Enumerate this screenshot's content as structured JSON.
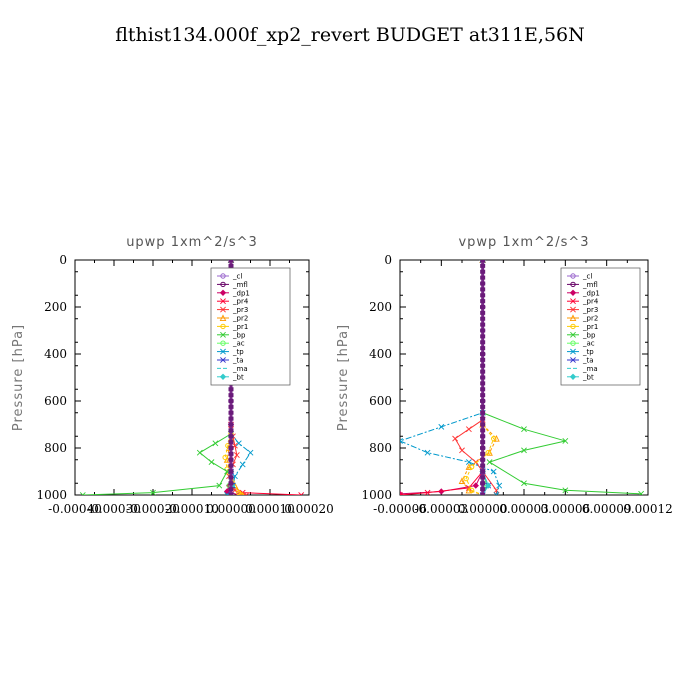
{
  "title": "flthist134.000f_xp2_revert  BUDGET at311E,56N",
  "chart_data": [
    {
      "type": "line",
      "title": "upwp   1xm^2/s^3",
      "ylabel": "Pressure [hPa]",
      "xlim": [
        -0.0004,
        0.0002
      ],
      "ylim": [
        1000,
        0
      ],
      "xticks": [
        "-0.00040",
        "-0.00030",
        "-0.00020",
        "-0.00010",
        "0.00000",
        "0.00010",
        "0.00020"
      ],
      "yticks": [
        "0",
        "200",
        "400",
        "600",
        "800",
        "1000"
      ],
      "legend_position": "top-right",
      "series": [
        {
          "name": "_cl",
          "color": "#9966cc",
          "marker": "circle",
          "points": [
            [
              0,
              0
            ],
            [
              0,
              100
            ],
            [
              0,
              200
            ],
            [
              0,
              300
            ],
            [
              0,
              400
            ],
            [
              0,
              500
            ],
            [
              0,
              600
            ],
            [
              0,
              700
            ],
            [
              0,
              750
            ],
            [
              0,
              800
            ],
            [
              0,
              850
            ],
            [
              0,
              900
            ],
            [
              0,
              950
            ],
            [
              0,
              1000
            ]
          ]
        },
        {
          "name": "_mfl",
          "color": "#660066",
          "marker": "circle",
          "points": [
            [
              0,
              0
            ],
            [
              0,
              200
            ],
            [
              0,
              400
            ],
            [
              0,
              600
            ],
            [
              0,
              800
            ],
            [
              0,
              1000
            ]
          ]
        },
        {
          "name": "_dp1",
          "color": "#cc0066",
          "marker": "diamond",
          "points": [
            [
              0,
              0
            ],
            [
              0,
              700
            ],
            [
              0,
              900
            ],
            [
              -5e-06,
              960
            ],
            [
              -1e-05,
              985
            ],
            [
              2e-05,
              1000
            ]
          ]
        },
        {
          "name": "_pr4",
          "color": "#ff0033",
          "marker": "cross",
          "points": [
            [
              0,
              0
            ],
            [
              0,
              700
            ],
            [
              2e-06,
              960
            ],
            [
              3e-05,
              990
            ],
            [
              0.00018,
              1000
            ]
          ]
        },
        {
          "name": "_pr3",
          "color": "#ff3333",
          "marker": "cross",
          "points": [
            [
              0,
              0
            ],
            [
              0,
              720
            ],
            [
              5e-06,
              750
            ],
            [
              1e-05,
              790
            ],
            [
              1.5e-05,
              830
            ],
            [
              5e-06,
              870
            ],
            [
              -5e-06,
              920
            ],
            [
              1e-05,
              980
            ],
            [
              4e-05,
              1000
            ]
          ]
        },
        {
          "name": "_pr2",
          "color": "#ff9900",
          "marker": "triangle",
          "points": [
            [
              0,
              0
            ],
            [
              0,
              760
            ],
            [
              -5e-06,
              800
            ],
            [
              -1e-05,
              850
            ],
            [
              -5e-06,
              900
            ],
            [
              1e-05,
              960
            ],
            [
              3e-05,
              1000
            ]
          ]
        },
        {
          "name": "_pr1",
          "color": "#ffcc00",
          "marker": "circle",
          "points": [
            [
              0,
              0
            ],
            [
              0,
              740
            ],
            [
              -8e-06,
              790
            ],
            [
              -1.5e-05,
              840
            ],
            [
              -1e-05,
              890
            ],
            [
              3e-06,
              940
            ],
            [
              2e-05,
              990
            ],
            [
              2.5e-05,
              1000
            ]
          ]
        },
        {
          "name": "_bp",
          "color": "#33cc33",
          "marker": "cross",
          "points": [
            [
              0,
              0
            ],
            [
              0,
              740
            ],
            [
              -4e-05,
              780
            ],
            [
              -8e-05,
              820
            ],
            [
              -5e-05,
              860
            ],
            [
              -1e-05,
              900
            ],
            [
              -3e-05,
              960
            ],
            [
              -0.0002,
              990
            ],
            [
              -0.00038,
              1000
            ]
          ]
        },
        {
          "name": "_ac",
          "color": "#66ff66",
          "marker": "circle",
          "points": [
            [
              0,
              0
            ],
            [
              0,
              900
            ],
            [
              -5e-06,
              960
            ],
            [
              0,
              1000
            ]
          ]
        },
        {
          "name": "_tp",
          "color": "#0099cc",
          "marker": "cross",
          "points": [
            [
              0,
              0
            ],
            [
              0,
              740
            ],
            [
              2e-05,
              780
            ],
            [
              5e-05,
              820
            ],
            [
              3e-05,
              870
            ],
            [
              1e-05,
              920
            ],
            [
              5e-06,
              960
            ],
            [
              -1e-05,
              1000
            ]
          ]
        },
        {
          "name": "_ta",
          "color": "#3333cc",
          "marker": "cross",
          "points": [
            [
              0,
              0
            ],
            [
              0,
              900
            ],
            [
              3e-06,
              960
            ],
            [
              0,
              1000
            ]
          ]
        },
        {
          "name": "_ma",
          "color": "#33cccc",
          "marker": "none",
          "points": [
            [
              0,
              0
            ],
            [
              0,
              1000
            ]
          ]
        },
        {
          "name": "_bt",
          "color": "#33cccc",
          "marker": "diamond",
          "points": [
            [
              0,
              0
            ],
            [
              0,
              900
            ],
            [
              3e-06,
              960
            ],
            [
              0,
              1000
            ]
          ]
        }
      ]
    },
    {
      "type": "line",
      "title": "vpwp   1xm^2/s^3",
      "ylabel": "Pressure [hPa]",
      "xlim": [
        -6e-05,
        0.00012
      ],
      "ylim": [
        1000,
        0
      ],
      "xticks": [
        "-0.00006",
        "-0.00003",
        "0.00000",
        "0.00003",
        "0.00006",
        "0.00009",
        "0.00012"
      ],
      "yticks": [
        "0",
        "200",
        "400",
        "600",
        "800",
        "1000"
      ],
      "legend_position": "top-right",
      "series": [
        {
          "name": "_cl",
          "color": "#9966cc",
          "marker": "circle",
          "points": [
            [
              0,
              0
            ],
            [
              0,
              100
            ],
            [
              0,
              200
            ],
            [
              0,
              300
            ],
            [
              0,
              400
            ],
            [
              0,
              500
            ],
            [
              0,
              600
            ],
            [
              0,
              700
            ],
            [
              0,
              750
            ],
            [
              0,
              800
            ],
            [
              0,
              850
            ],
            [
              0,
              900
            ],
            [
              0,
              950
            ],
            [
              0,
              1000
            ]
          ]
        },
        {
          "name": "_mfl",
          "color": "#660066",
          "marker": "circle",
          "points": [
            [
              0,
              0
            ],
            [
              0,
              200
            ],
            [
              0,
              400
            ],
            [
              0,
              600
            ],
            [
              0,
              800
            ],
            [
              0,
              1000
            ]
          ]
        },
        {
          "name": "_dp1",
          "color": "#cc0066",
          "marker": "diamond",
          "points": [
            [
              0,
              0
            ],
            [
              0,
              900
            ],
            [
              -5e-06,
              960
            ],
            [
              -3e-05,
              985
            ],
            [
              -6e-05,
              995
            ]
          ]
        },
        {
          "name": "_pr4",
          "color": "#ff0033",
          "marker": "cross",
          "points": [
            [
              0,
              0
            ],
            [
              0,
              900
            ],
            [
              -1e-05,
              970
            ],
            [
              -4e-05,
              990
            ],
            [
              -6e-05,
              1000
            ]
          ]
        },
        {
          "name": "_pr3",
          "color": "#ff3333",
          "marker": "cross",
          "points": [
            [
              0,
              0
            ],
            [
              0,
              680
            ],
            [
              -1e-05,
              720
            ],
            [
              -2e-05,
              760
            ],
            [
              -1.5e-05,
              810
            ],
            [
              -5e-06,
              860
            ],
            [
              0,
              900
            ],
            [
              1e-05,
              980
            ],
            [
              1e-05,
              1000
            ]
          ]
        },
        {
          "name": "_pr2",
          "color": "#ff9900",
          "marker": "triangle",
          "points": [
            [
              0,
              0
            ],
            [
              0,
              700
            ],
            [
              1e-05,
              760
            ],
            [
              5e-06,
              820
            ],
            [
              -1e-05,
              880
            ],
            [
              -1.5e-05,
              940
            ],
            [
              -1e-05,
              980
            ],
            [
              0,
              1000
            ]
          ]
        },
        {
          "name": "_pr1",
          "color": "#ffcc00",
          "marker": "circle",
          "points": [
            [
              0,
              0
            ],
            [
              0,
              700
            ],
            [
              8e-06,
              760
            ],
            [
              4e-06,
              820
            ],
            [
              -8e-06,
              880
            ],
            [
              -1.2e-05,
              930
            ],
            [
              -8e-06,
              980
            ],
            [
              0,
              1000
            ]
          ]
        },
        {
          "name": "_bp",
          "color": "#33cc33",
          "marker": "cross",
          "points": [
            [
              0,
              0
            ],
            [
              0,
              650
            ],
            [
              3e-05,
              720
            ],
            [
              6e-05,
              770
            ],
            [
              3e-05,
              810
            ],
            [
              5e-06,
              860
            ],
            [
              3e-05,
              950
            ],
            [
              6e-05,
              980
            ],
            [
              0.000115,
              995
            ]
          ]
        },
        {
          "name": "_ac",
          "color": "#66ff66",
          "marker": "circle",
          "points": [
            [
              0,
              0
            ],
            [
              0,
              900
            ],
            [
              3e-06,
              960
            ],
            [
              0,
              1000
            ]
          ]
        },
        {
          "name": "_tp",
          "color": "#0099cc",
          "marker": "cross",
          "points": [
            [
              0,
              0
            ],
            [
              0,
              650
            ],
            [
              -3e-05,
              710
            ],
            [
              -6e-05,
              770
            ],
            [
              -4e-05,
              820
            ],
            [
              -1e-05,
              860
            ],
            [
              8e-06,
              900
            ],
            [
              1.2e-05,
              960
            ],
            [
              1e-05,
              1000
            ]
          ]
        },
        {
          "name": "_ta",
          "color": "#3333cc",
          "marker": "cross",
          "points": [
            [
              0,
              0
            ],
            [
              0,
              900
            ],
            [
              4e-06,
              960
            ],
            [
              0,
              1000
            ]
          ]
        },
        {
          "name": "_ma",
          "color": "#33cccc",
          "marker": "none",
          "points": [
            [
              0,
              0
            ],
            [
              0,
              1000
            ]
          ]
        },
        {
          "name": "_bt",
          "color": "#33cccc",
          "marker": "diamond",
          "points": [
            [
              0,
              0
            ],
            [
              0,
              900
            ],
            [
              4e-06,
              960
            ],
            [
              0,
              1000
            ]
          ]
        }
      ]
    }
  ]
}
